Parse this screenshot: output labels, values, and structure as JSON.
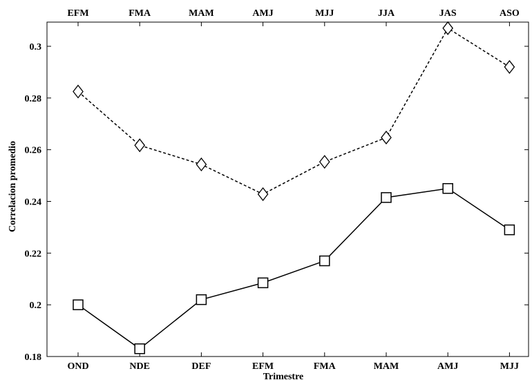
{
  "chart_data": {
    "type": "line",
    "title": "",
    "xlabel": "Trimestre",
    "ylabel": "Correlacion promedio",
    "categories": [
      "OND",
      "NDE",
      "DEF",
      "EFM",
      "FMA",
      "MAM",
      "AMJ",
      "MJJ"
    ],
    "top_categories": [
      "EFM",
      "FMA",
      "MAM",
      "AMJ",
      "MJJ",
      "JJA",
      "JAS",
      "ASO"
    ],
    "ylim": [
      0.18,
      0.31
    ],
    "yticks": [
      0.18,
      0.2,
      0.22,
      0.24,
      0.26,
      0.28,
      0.3
    ],
    "ytick_labels": [
      "0.18",
      "0.2",
      "0.22",
      "0.24",
      "0.26",
      "0.28",
      "0.3"
    ],
    "grid": false,
    "series": [
      {
        "axis": "bottom",
        "marker": "square",
        "line_style": "solid",
        "color": "#000000",
        "values": [
          0.2,
          0.183,
          0.202,
          0.2085,
          0.217,
          0.2415,
          0.245,
          0.229
        ]
      },
      {
        "axis": "top",
        "marker": "diamond",
        "line_style": "dashed",
        "color": "#000000",
        "values": [
          0.2825,
          0.2617,
          0.2543,
          0.2428,
          0.2553,
          0.2647,
          0.307,
          0.292
        ]
      }
    ]
  }
}
